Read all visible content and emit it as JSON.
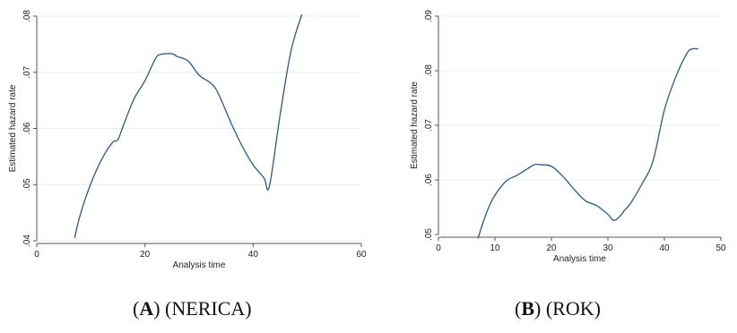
{
  "chart_data": [
    {
      "type": "line",
      "caption_letter": "A",
      "caption_text": "(NERICA)",
      "xlabel": "Analysis time",
      "ylabel": "Estimated hazard rate",
      "xlim": [
        0,
        60
      ],
      "ylim": [
        0.04,
        0.08
      ],
      "xticks": [
        0,
        20,
        40,
        60
      ],
      "xtick_labels": [
        "0",
        "20",
        "40",
        "60"
      ],
      "yticks": [
        0.04,
        0.05,
        0.06,
        0.07,
        0.08
      ],
      "ytick_labels": [
        ".04",
        ".05",
        ".06",
        ".07",
        ".08"
      ],
      "grid": "horizontal",
      "series": [
        {
          "color": "#2b5a84",
          "x": [
            7,
            8,
            10,
            12,
            14,
            15,
            16,
            18,
            20,
            22,
            23,
            25,
            26,
            28,
            30,
            32,
            33,
            34,
            36,
            38,
            40,
            42,
            43,
            45,
            47,
            49
          ],
          "y": [
            0.0405,
            0.0445,
            0.0502,
            0.0545,
            0.0575,
            0.058,
            0.0605,
            0.0653,
            0.0685,
            0.0725,
            0.0732,
            0.0733,
            0.0728,
            0.072,
            0.0695,
            0.0682,
            0.0672,
            0.0653,
            0.0608,
            0.0568,
            0.0535,
            0.0512,
            0.0497,
            0.0625,
            0.0738,
            0.0803
          ]
        }
      ]
    },
    {
      "type": "line",
      "caption_letter": "B",
      "caption_text": "(ROK)",
      "xlabel": "Analysis time",
      "ylabel": "Estimated hazard rate",
      "xlim": [
        0,
        50
      ],
      "ylim": [
        0.05,
        0.09
      ],
      "xticks": [
        0,
        10,
        20,
        30,
        40,
        50
      ],
      "xtick_labels": [
        "0",
        "10",
        "20",
        "30",
        "40",
        "50"
      ],
      "yticks": [
        0.05,
        0.06,
        0.07,
        0.08,
        0.09
      ],
      "ytick_labels": [
        ".05",
        ".06",
        ".07",
        ".08",
        ".09"
      ],
      "grid": "horizontal",
      "series": [
        {
          "color": "#2b5a84",
          "x": [
            7,
            8,
            9,
            10,
            12,
            14,
            16,
            17,
            18,
            20,
            22,
            24,
            26,
            28,
            30,
            31,
            32,
            33,
            34,
            36,
            38,
            40,
            42,
            44,
            45,
            46
          ],
          "y": [
            0.0493,
            0.0525,
            0.0552,
            0.0572,
            0.0598,
            0.0609,
            0.0622,
            0.0628,
            0.0628,
            0.0625,
            0.0607,
            0.0583,
            0.0562,
            0.0553,
            0.0537,
            0.0526,
            0.0532,
            0.0545,
            0.0557,
            0.0592,
            0.0635,
            0.0728,
            0.0788,
            0.0832,
            0.084,
            0.084
          ]
        }
      ]
    }
  ]
}
